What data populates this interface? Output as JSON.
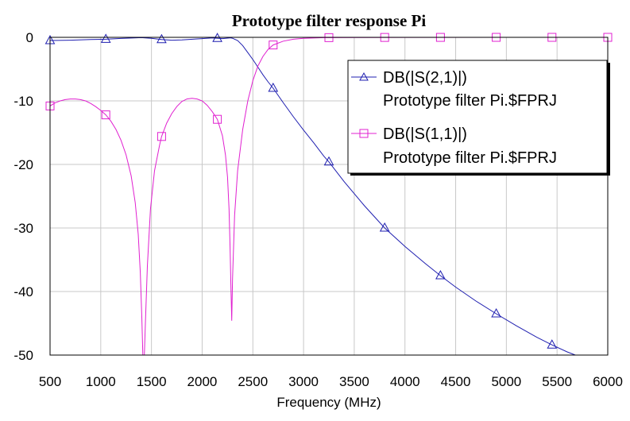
{
  "chart_data": {
    "type": "line",
    "title": "Prototype filter response Pi",
    "xlabel": "Frequency (MHz)",
    "ylabel": "",
    "xlim": [
      500,
      6000
    ],
    "ylim": [
      -50,
      0
    ],
    "x_ticks": [
      "500",
      "1000",
      "1500",
      "2000",
      "2500",
      "3000",
      "3500",
      "4000",
      "4500",
      "5000",
      "5500",
      "6000"
    ],
    "y_ticks": [
      "0",
      "-10",
      "-20",
      "-30",
      "-40",
      "-50"
    ],
    "grid": true,
    "legend_position": "top-right",
    "series": [
      {
        "name": "DB(|S(2,1)|)",
        "name_line2": "Prototype filter Pi.$FPRJ",
        "color": "#1f1fb0",
        "marker": "triangle",
        "points": [
          [
            500,
            -0.5
          ],
          [
            700,
            -0.45
          ],
          [
            900,
            -0.35
          ],
          [
            1050,
            -0.3
          ],
          [
            1200,
            -0.18
          ],
          [
            1400,
            -0.05
          ],
          [
            1500,
            -0.15
          ],
          [
            1600,
            -0.35
          ],
          [
            1700,
            -0.45
          ],
          [
            1800,
            -0.4
          ],
          [
            1950,
            -0.25
          ],
          [
            2100,
            -0.1
          ],
          [
            2200,
            -0.2
          ],
          [
            2280,
            -0.08
          ],
          [
            2300,
            -0.15
          ],
          [
            2350,
            -0.5
          ],
          [
            2400,
            -1.3
          ],
          [
            2450,
            -2.4
          ],
          [
            2500,
            -3.5
          ],
          [
            2550,
            -4.7
          ],
          [
            2600,
            -5.9
          ],
          [
            2650,
            -7.0
          ],
          [
            2700,
            -8.0
          ],
          [
            2800,
            -10.3
          ],
          [
            2900,
            -12.5
          ],
          [
            3000,
            -14.6
          ],
          [
            3100,
            -16.6
          ],
          [
            3200,
            -18.7
          ],
          [
            3250,
            -19.6
          ],
          [
            3400,
            -22.7
          ],
          [
            3600,
            -26.5
          ],
          [
            3800,
            -30.0
          ],
          [
            4000,
            -32.9
          ],
          [
            4200,
            -35.6
          ],
          [
            4350,
            -37.5
          ],
          [
            4500,
            -39.3
          ],
          [
            4700,
            -41.5
          ],
          [
            4900,
            -43.5
          ],
          [
            5100,
            -45.4
          ],
          [
            5300,
            -47.2
          ],
          [
            5450,
            -48.4
          ],
          [
            5600,
            -49.5
          ],
          [
            5680,
            -50.0
          ]
        ],
        "markers_at": [
          500,
          1050,
          1600,
          2150,
          2700,
          3250,
          3800,
          4350,
          4900,
          5450
        ]
      },
      {
        "name": "DB(|S(1,1)|)",
        "name_line2": "Prototype filter Pi.$FPRJ",
        "color": "#e020d0",
        "marker": "square",
        "points": [
          [
            500,
            -10.8
          ],
          [
            550,
            -10.3
          ],
          [
            600,
            -10.0
          ],
          [
            650,
            -9.8
          ],
          [
            700,
            -9.7
          ],
          [
            750,
            -9.7
          ],
          [
            800,
            -9.8
          ],
          [
            850,
            -10.0
          ],
          [
            900,
            -10.4
          ],
          [
            950,
            -10.9
          ],
          [
            1000,
            -11.5
          ],
          [
            1050,
            -12.2
          ],
          [
            1100,
            -13.2
          ],
          [
            1150,
            -14.5
          ],
          [
            1200,
            -16.2
          ],
          [
            1250,
            -18.5
          ],
          [
            1300,
            -21.8
          ],
          [
            1340,
            -26.0
          ],
          [
            1370,
            -31.0
          ],
          [
            1390,
            -37.0
          ],
          [
            1405,
            -44.0
          ],
          [
            1415,
            -50.0
          ],
          [
            1430,
            -50.0
          ],
          [
            1440,
            -45.0
          ],
          [
            1460,
            -36.0
          ],
          [
            1490,
            -27.0
          ],
          [
            1530,
            -21.0
          ],
          [
            1580,
            -17.0
          ],
          [
            1600,
            -15.6
          ],
          [
            1650,
            -13.5
          ],
          [
            1700,
            -12.0
          ],
          [
            1750,
            -10.9
          ],
          [
            1800,
            -10.1
          ],
          [
            1850,
            -9.7
          ],
          [
            1900,
            -9.6
          ],
          [
            1950,
            -9.7
          ],
          [
            2000,
            -10.0
          ],
          [
            2050,
            -10.7
          ],
          [
            2100,
            -11.7
          ],
          [
            2150,
            -12.9
          ],
          [
            2200,
            -15.5
          ],
          [
            2230,
            -18.5
          ],
          [
            2250,
            -22.0
          ],
          [
            2265,
            -27.0
          ],
          [
            2275,
            -33.0
          ],
          [
            2285,
            -40.0
          ],
          [
            2292,
            -44.6
          ],
          [
            2300,
            -38.0
          ],
          [
            2320,
            -28.0
          ],
          [
            2350,
            -21.0
          ],
          [
            2400,
            -14.5
          ],
          [
            2450,
            -10.0
          ],
          [
            2500,
            -6.8
          ],
          [
            2550,
            -4.5
          ],
          [
            2600,
            -3.0
          ],
          [
            2650,
            -1.9
          ],
          [
            2700,
            -1.2
          ],
          [
            2800,
            -0.6
          ],
          [
            2900,
            -0.3
          ],
          [
            3000,
            -0.15
          ],
          [
            3200,
            -0.05
          ],
          [
            3500,
            -0.02
          ],
          [
            4000,
            -0.01
          ],
          [
            5000,
            0.0
          ],
          [
            6000,
            0.0
          ]
        ],
        "markers_at": [
          500,
          1050,
          1600,
          2150,
          2700,
          3250,
          3800,
          4350,
          4900,
          5450,
          6000
        ]
      }
    ]
  }
}
